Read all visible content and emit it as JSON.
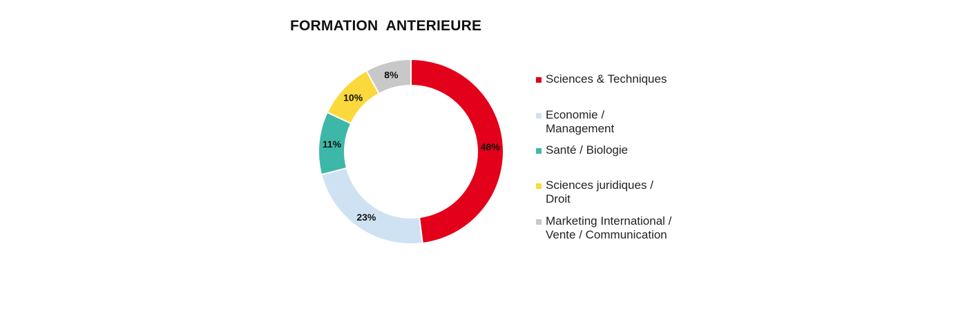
{
  "chart_data": {
    "type": "pie",
    "title": "FORMATION  ANTERIEURE",
    "unit": "%",
    "categories": [
      "Sciences & Techniques",
      "Economie / Management",
      "Santé / Biologie",
      "Sciences juridiques / Droit",
      "Marketing International / Vente / Communication"
    ],
    "values": [
      48,
      23,
      11,
      10,
      8
    ],
    "data_labels": [
      "48%",
      "23%",
      "11%",
      "10%",
      "8%"
    ],
    "legend_labels": [
      "Sciences & Techniques",
      "Economie /\nManagement",
      "Santé / Biologie",
      "Sciences juridiques /\nDroit",
      "Marketing International /\nVente / Communication"
    ],
    "colors": [
      "#e2001a",
      "#cfe2f3",
      "#3db8a8",
      "#fbd93c",
      "#c8c8c8"
    ],
    "donut": true,
    "legend_position": "right"
  }
}
